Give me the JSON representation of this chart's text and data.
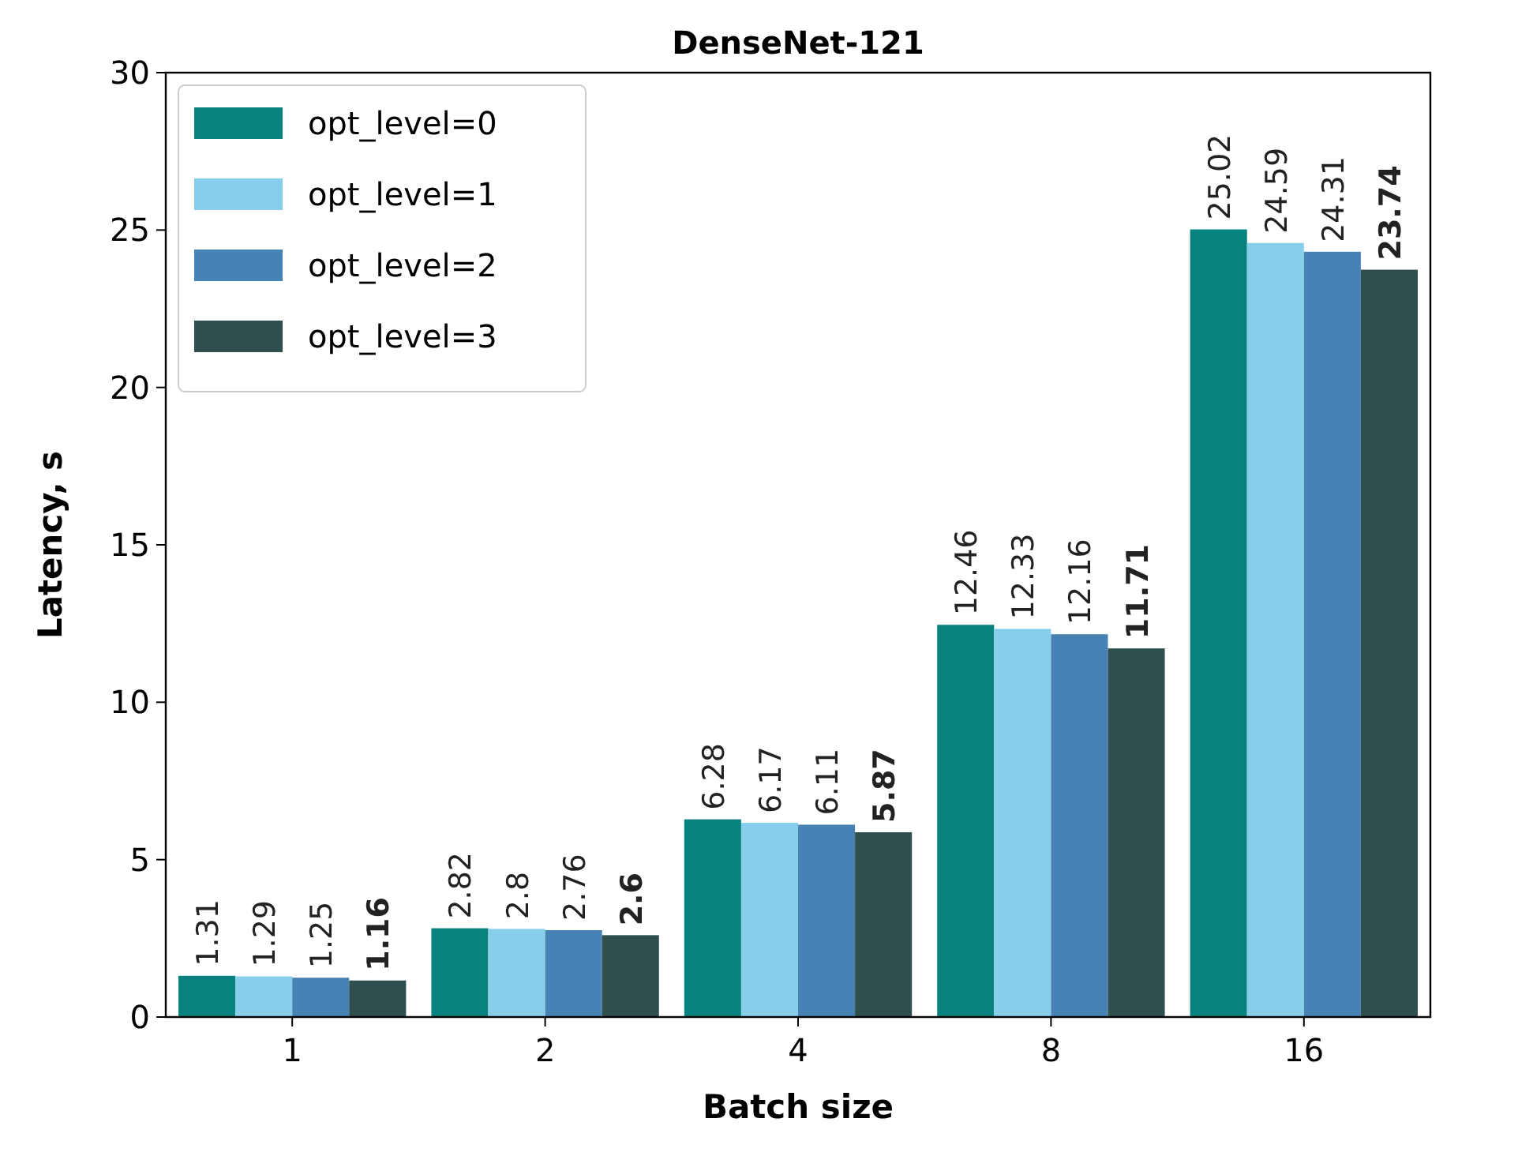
{
  "chart_data": {
    "type": "bar",
    "title": "DenseNet-121",
    "xlabel": "Batch size",
    "ylabel": "Latency, s",
    "categories": [
      "1",
      "2",
      "4",
      "8",
      "16"
    ],
    "series": [
      {
        "name": "opt_level=0",
        "color": "#08827f",
        "values": [
          1.31,
          2.82,
          6.28,
          12.46,
          25.02
        ]
      },
      {
        "name": "opt_level=1",
        "color": "#87ceeb",
        "values": [
          1.29,
          2.8,
          6.17,
          12.33,
          24.59
        ]
      },
      {
        "name": "opt_level=2",
        "color": "#4682b4",
        "values": [
          1.25,
          2.76,
          6.11,
          12.16,
          24.31
        ]
      },
      {
        "name": "opt_level=3",
        "color": "#2f4f4f",
        "values": [
          1.16,
          2.6,
          5.87,
          11.71,
          23.74
        ]
      }
    ],
    "ylim": [
      0,
      30
    ],
    "yticks": [
      0,
      5,
      10,
      15,
      20,
      25,
      30
    ],
    "data_labels": true,
    "legend": "top left",
    "grid": false
  }
}
